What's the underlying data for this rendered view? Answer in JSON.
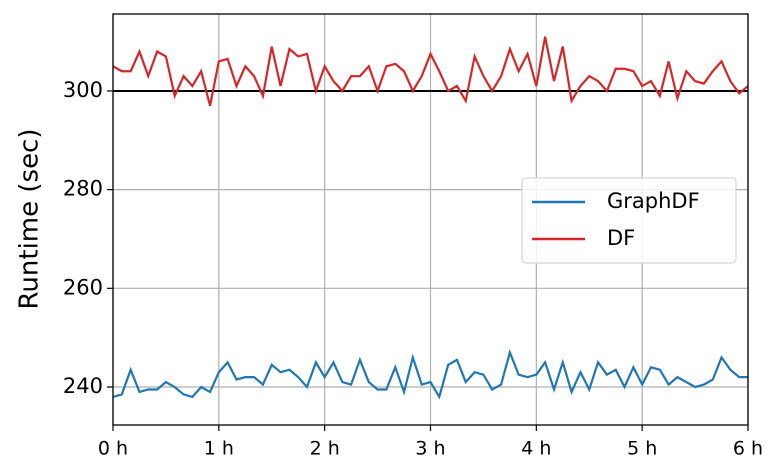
{
  "chart_data": {
    "type": "line",
    "ylabel": "Runtime (sec)",
    "x": [
      0,
      0.083,
      0.167,
      0.25,
      0.333,
      0.417,
      0.5,
      0.583,
      0.667,
      0.75,
      0.833,
      0.917,
      1,
      1.083,
      1.167,
      1.25,
      1.333,
      1.417,
      1.5,
      1.583,
      1.667,
      1.75,
      1.833,
      1.917,
      2,
      2.083,
      2.167,
      2.25,
      2.333,
      2.417,
      2.5,
      2.583,
      2.667,
      2.75,
      2.833,
      2.917,
      3,
      3.083,
      3.167,
      3.25,
      3.333,
      3.417,
      3.5,
      3.583,
      3.667,
      3.75,
      3.833,
      3.917,
      4,
      4.083,
      4.167,
      4.25,
      4.333,
      4.417,
      4.5,
      4.583,
      4.667,
      4.75,
      4.833,
      4.917,
      5,
      5.083,
      5.167,
      5.25,
      5.333,
      5.417,
      5.5,
      5.583,
      5.667,
      5.75,
      5.833,
      5.917,
      6
    ],
    "series": [
      {
        "name": "GraphDF",
        "color": "#1f77b4",
        "values": [
          238,
          238.5,
          243.5,
          239,
          239.5,
          239.5,
          241,
          240,
          238.5,
          238,
          240,
          239,
          243,
          245,
          241.5,
          242,
          242,
          240.5,
          244.5,
          243,
          243.5,
          242,
          240,
          245,
          242,
          245,
          241,
          240.5,
          245.5,
          241,
          239.5,
          239.5,
          244,
          239,
          246,
          240.5,
          241,
          238,
          244.5,
          245.5,
          241,
          243,
          242.5,
          239.5,
          240.5,
          247,
          242.5,
          242,
          242.5,
          245,
          239.5,
          245,
          239,
          243,
          239.5,
          245,
          242.5,
          243.5,
          240,
          244,
          240.5,
          244,
          243.5,
          240.5,
          242,
          241,
          240,
          240.5,
          241.5,
          246,
          243.5,
          242,
          242
        ]
      },
      {
        "name": "DF",
        "color": "#d62728",
        "values": [
          305,
          304,
          304,
          308,
          303,
          308,
          307,
          299,
          303,
          301,
          304,
          297,
          306,
          306.5,
          301,
          305,
          303,
          299,
          309,
          301,
          308.5,
          307,
          307.5,
          300,
          305,
          302,
          300,
          303,
          303,
          305,
          300,
          305,
          305.5,
          304,
          300,
          303,
          307.5,
          304,
          300,
          301,
          298,
          307,
          303,
          300,
          303,
          308.5,
          304,
          307.5,
          301,
          311,
          302,
          309,
          298,
          301,
          303,
          302,
          300,
          304.5,
          304.5,
          304,
          301,
          302,
          299,
          306,
          298.5,
          304,
          302,
          301.5,
          304,
          306,
          302,
          299.5,
          301
        ]
      }
    ],
    "hline": 300,
    "xlim": [
      0,
      6
    ],
    "xticks": [
      {
        "value": 0,
        "label": "0 h"
      },
      {
        "value": 1,
        "label": "1 h"
      },
      {
        "value": 2,
        "label": "2 h"
      },
      {
        "value": 3,
        "label": "3 h"
      },
      {
        "value": 4,
        "label": "4 h"
      },
      {
        "value": 5,
        "label": "5 h"
      },
      {
        "value": 6,
        "label": "6 h"
      }
    ],
    "ylim": [
      232.3,
      315.6
    ],
    "yticks": [
      240,
      260,
      280,
      300
    ],
    "grid": true,
    "legend": "center right"
  }
}
